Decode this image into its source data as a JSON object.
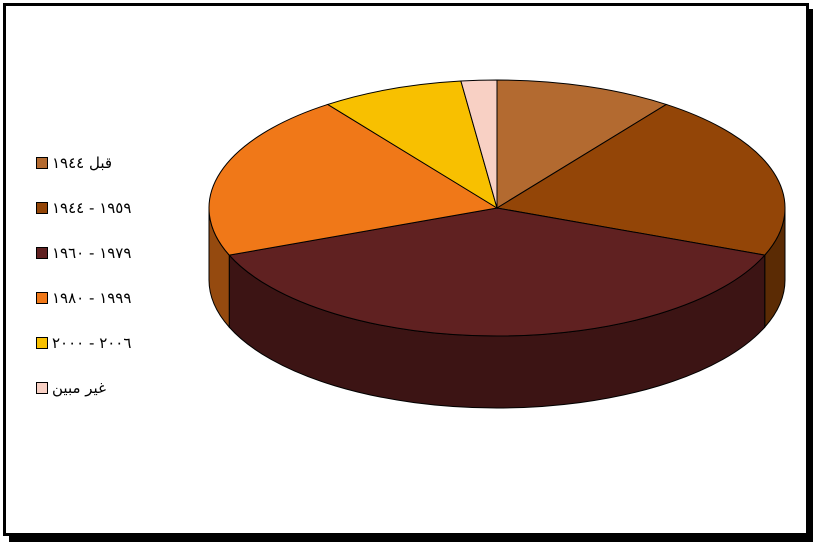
{
  "chart_data": {
    "type": "pie",
    "categories": [
      "قبل ١٩٤٤",
      "١٩٥٩ - ١٩٤٤",
      "١٩٧٩ - ١٩٦٠",
      "١٩٩٩ - ١٩٨٠",
      "٢٠٠٦ - ٢٠٠٠",
      "غير مبين"
    ],
    "values": [
      10,
      21,
      38,
      21,
      8,
      2
    ],
    "colors": [
      "#B36A30",
      "#934507",
      "#602121",
      "#F07818",
      "#F8C000",
      "#F8D0C4"
    ],
    "legend_position": "left",
    "three_d": true
  }
}
